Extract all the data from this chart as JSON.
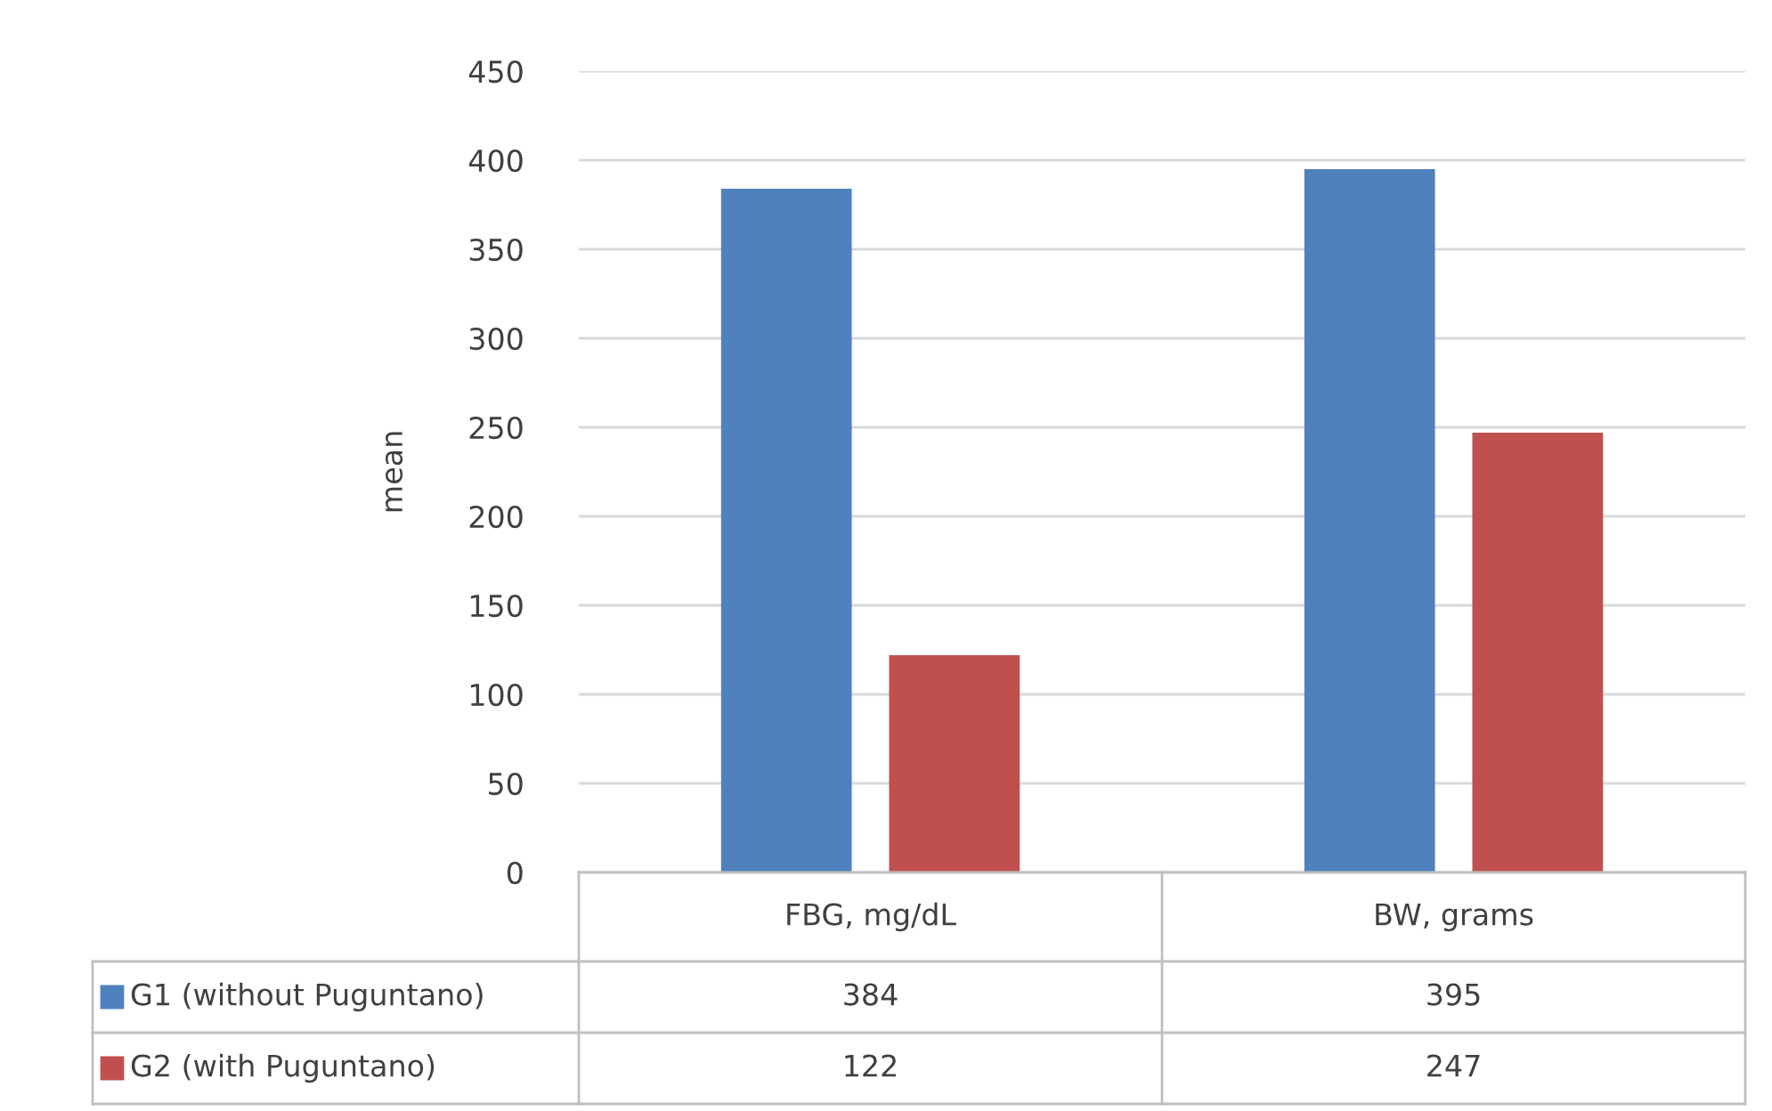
{
  "chart_data": {
    "type": "bar",
    "ylabel": "mean",
    "categories": [
      "FBG, mg/dL",
      "BW, grams"
    ],
    "series": [
      {
        "name": "G1 (without Puguntano)",
        "color": "#4f81bd",
        "values": [
          384,
          395
        ]
      },
      {
        "name": "G2 (with Puguntano)",
        "color": "#c0504d",
        "values": [
          122,
          247
        ]
      }
    ],
    "ylim": [
      0,
      450
    ],
    "yticks": [
      0,
      50,
      100,
      150,
      200,
      250,
      300,
      350,
      400,
      450
    ],
    "grid": "y",
    "data_labels": true,
    "legend": "bottom"
  }
}
